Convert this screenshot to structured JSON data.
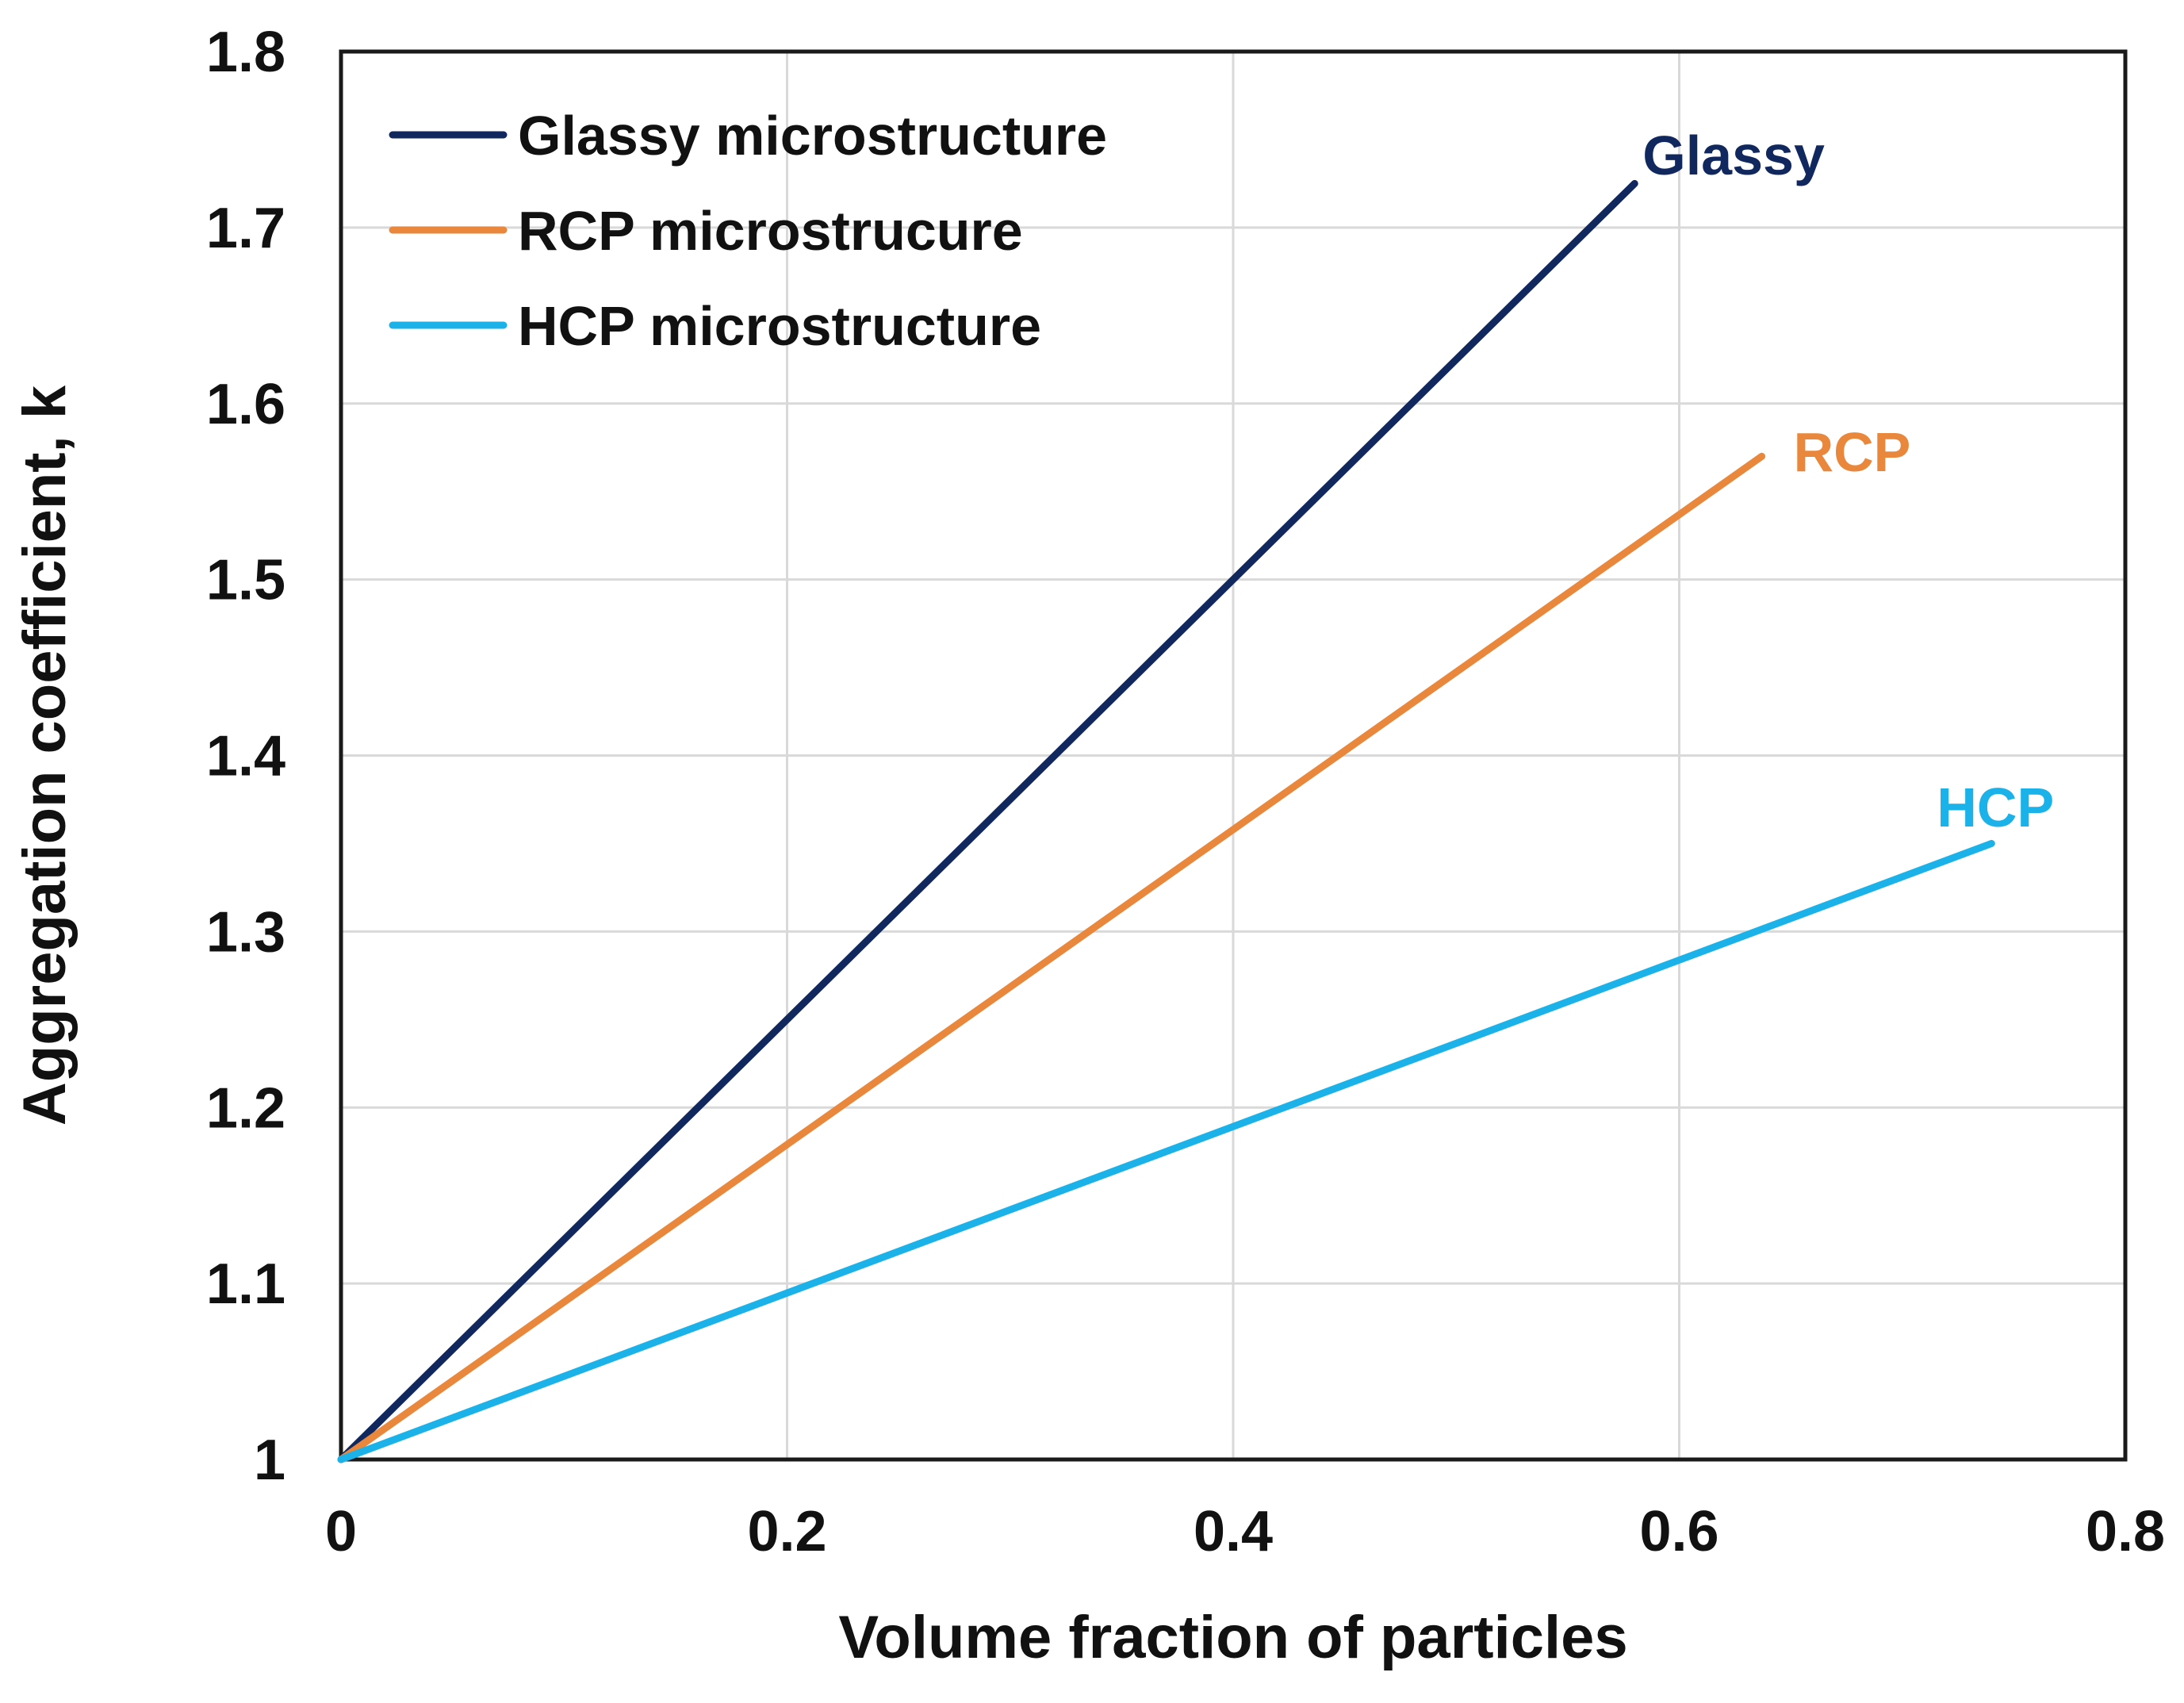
{
  "chart_data": {
    "type": "line",
    "title": "",
    "xlabel": "Volume fraction of particles",
    "ylabel": "Aggregation coefficient, k",
    "xlim": [
      0,
      0.8
    ],
    "ylim": [
      1,
      1.8
    ],
    "xticks": [
      0,
      0.2,
      0.4,
      0.6,
      0.8
    ],
    "xtick_labels": [
      "0",
      "0.2",
      "0.4",
      "0.6",
      "0.8"
    ],
    "yticks": [
      1,
      1.1,
      1.2,
      1.3,
      1.4,
      1.5,
      1.6,
      1.7,
      1.8
    ],
    "ytick_labels": [
      "1",
      "1.1",
      "1.2",
      "1.3",
      "1.4",
      "1.5",
      "1.6",
      "1.7",
      "1.8"
    ],
    "grid": true,
    "legend_position": "top-left",
    "series": [
      {
        "name": "Glassy microstructure",
        "short_label": "Glassy",
        "color": "#10285e",
        "x": [
          0,
          0.58
        ],
        "y": [
          1,
          1.725
        ]
      },
      {
        "name": "RCP microstrucure",
        "short_label": "RCP",
        "color": "#e9883d",
        "x": [
          0,
          0.637
        ],
        "y": [
          1,
          1.57
        ]
      },
      {
        "name": "HCP microstructure",
        "short_label": "HCP",
        "color": "#1ab2e8",
        "x": [
          0,
          0.74
        ],
        "y": [
          1,
          1.35
        ]
      }
    ]
  }
}
